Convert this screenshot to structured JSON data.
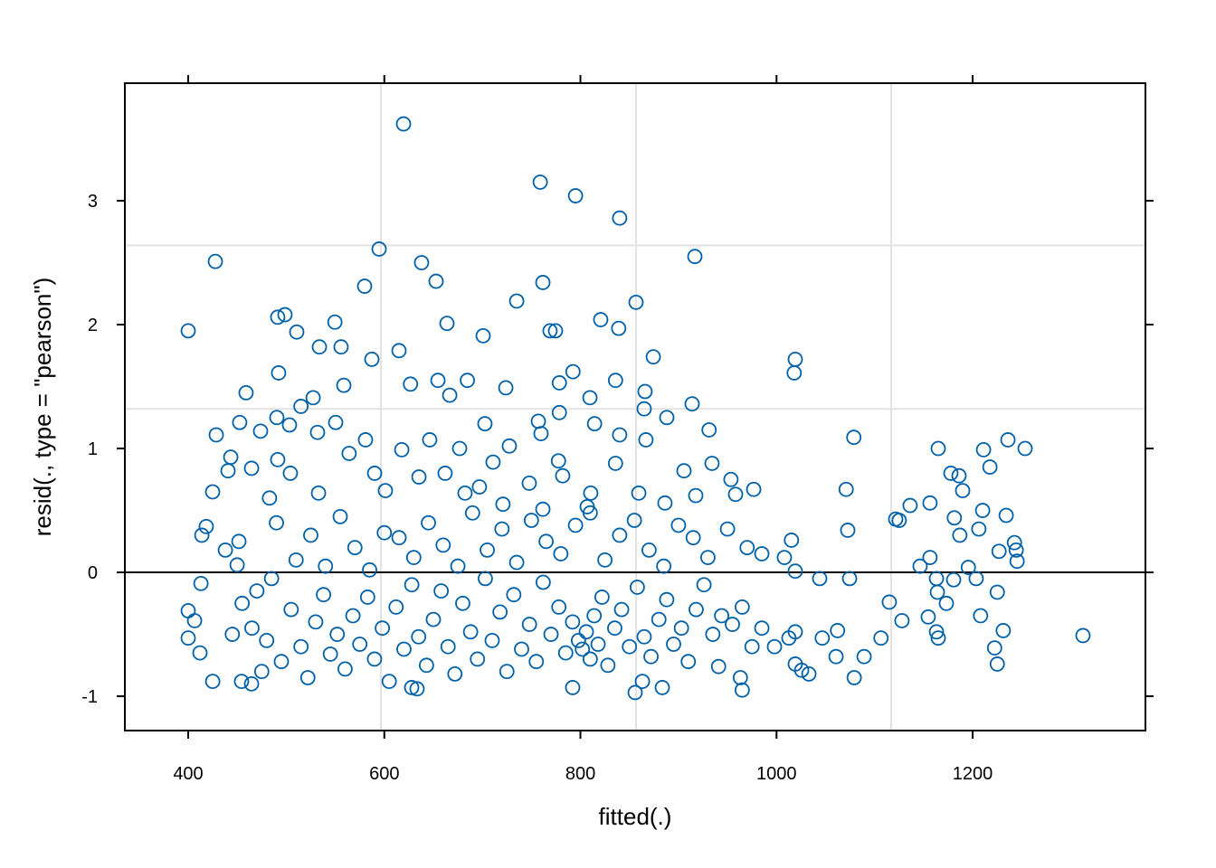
{
  "chart_data": {
    "type": "scatter",
    "x_label": "fitted(.)",
    "y_label": "resid(., type = \"pearson\")",
    "xlim": [
      335.4,
      1376.2
    ],
    "ylim": [
      -1.277,
      3.949
    ],
    "xticks": [
      400,
      600,
      800,
      1000,
      1200
    ],
    "yticks": [
      -1,
      0,
      1,
      2,
      3
    ],
    "grid_x": [
      596.5,
      856.7,
      1116.9
    ],
    "grid_y": [
      1.32,
      2.64
    ],
    "hline": 0,
    "color": "#0060a8",
    "x": [
      619.6,
      759,
      795,
      840,
      594.7,
      427.7,
      638,
      916.7,
      400,
      491.3,
      498.7,
      652.8,
      761.7,
      579.9,
      549.6,
      555.9,
      533.8,
      510.7,
      615,
      663.9,
      735,
      820.7,
      839,
      856.7,
      769,
      774.6,
      700.8,
      874.3,
      587.3,
      1019.1,
      1018,
      492.2,
      792.4,
      778.5,
      835.8,
      654.7,
      684.7,
      558.7,
      626.7,
      459,
      666.7,
      527.4,
      723.9,
      809.7,
      865.9,
      913.9,
      515,
      778.5,
      865,
      888.1,
      452.5,
      550.4,
      702.6,
      757.1,
      814.4,
      931.2,
      428.6,
      490.4,
      503.3,
      473.8,
      531.9,
      580.8,
      646.3,
      676.8,
      727.5,
      759.8,
      840,
      866.8,
      1078.8,
      1164.9,
      1236,
      1253.5,
      1211.1,
      443.4,
      491.3,
      564.1,
      617.8,
      710.9,
      777.6,
      835.8,
      905.6,
      934.2,
      953.5,
      1071,
      1217.6,
      1177.8,
      1186.1,
      440.6,
      464.6,
      504.2,
      590.1,
      635.3,
      662,
      697,
      747.8,
      781.9,
      810.5,
      859.5,
      917.6,
      976.7,
      424.9,
      482.9,
      532.9,
      601.1,
      682.3,
      721,
      761.7,
      806.9,
      886.2,
      958.2,
      1189.8,
      1136.2,
      1156.5,
      1210.2,
      1234.2,
      1072.6,
      1242.6,
      1244.4,
      1186.9,
      1206.3,
      1121.5,
      1125.1,
      1181.3,
      1015.2,
      1008,
      1156.5,
      1146.4,
      1195.6,
      1019.1,
      1245.3,
      1226.9,
      1044,
      1074.5,
      1163.1,
      1180.6,
      1203.6,
      1164,
      1225.1,
      1173.2,
      1115,
      1154.7,
      1127.9,
      1208.1,
      1231.2,
      1163.1,
      1164.9,
      1312.5,
      1106.5,
      1062.2,
      1046.6,
      1019.1,
      1012.6,
      997.9,
      1019.1,
      1025.6,
      1033,
      1060.7,
      1089.3,
      1079.2,
      1222.4,
      1225.1,
      965,
      963.1,
      940.9,
      855.8,
      863.2,
      883.5,
      792.1,
      633.4,
      627.9,
      400,
      400,
      406.5,
      412,
      425,
      454.4,
      464.6,
      413,
      418.4,
      413.9,
      437.9,
      451.7,
      449.9,
      480,
      495,
      505,
      515,
      522,
      530,
      538,
      545,
      552,
      560,
      568,
      575,
      583,
      590,
      598,
      605,
      612,
      620,
      628,
      635,
      643,
      650,
      658,
      665,
      672,
      680,
      688,
      695,
      703,
      710,
      718,
      725,
      732,
      740,
      748,
      755,
      762,
      770,
      778,
      785,
      792,
      798,
      802,
      806,
      810,
      814,
      818,
      822,
      828,
      835,
      842,
      850,
      858,
      865,
      872,
      880,
      888,
      895,
      903,
      910,
      918,
      926,
      935,
      944,
      955,
      965,
      975,
      985,
      490,
      510,
      525,
      540,
      555,
      570,
      585,
      600,
      615,
      630,
      645,
      660,
      675,
      690,
      705,
      720,
      735,
      750,
      765,
      780,
      795,
      810,
      825,
      840,
      855,
      870,
      885,
      900,
      915,
      930,
      950,
      970,
      985,
      470,
      465,
      475,
      485,
      455,
      445
    ],
    "values": [
      3.62,
      3.15,
      3.04,
      2.86,
      2.61,
      2.51,
      2.5,
      2.55,
      1.95,
      2.06,
      2.08,
      2.35,
      2.34,
      2.31,
      2.02,
      1.82,
      1.82,
      1.94,
      1.79,
      2.01,
      2.19,
      2.04,
      1.97,
      2.18,
      1.95,
      1.95,
      1.91,
      1.74,
      1.72,
      1.72,
      1.61,
      1.61,
      1.62,
      1.53,
      1.55,
      1.55,
      1.55,
      1.51,
      1.52,
      1.45,
      1.43,
      1.41,
      1.49,
      1.41,
      1.46,
      1.36,
      1.34,
      1.29,
      1.32,
      1.25,
      1.21,
      1.21,
      1.2,
      1.22,
      1.2,
      1.15,
      1.11,
      1.25,
      1.19,
      1.14,
      1.13,
      1.07,
      1.07,
      1.0,
      1.02,
      1.12,
      1.11,
      1.07,
      1.09,
      1.0,
      1.07,
      1.0,
      0.99,
      0.93,
      0.91,
      0.96,
      0.99,
      0.89,
      0.9,
      0.88,
      0.82,
      0.88,
      0.75,
      0.67,
      0.85,
      0.8,
      0.78,
      0.82,
      0.84,
      0.8,
      0.8,
      0.77,
      0.8,
      0.69,
      0.72,
      0.78,
      0.64,
      0.64,
      0.62,
      0.67,
      0.65,
      0.6,
      0.64,
      0.66,
      0.64,
      0.55,
      0.51,
      0.53,
      0.56,
      0.63,
      0.66,
      0.54,
      0.56,
      0.5,
      0.46,
      0.34,
      0.24,
      0.18,
      0.3,
      0.35,
      0.43,
      0.42,
      0.44,
      0.26,
      0.12,
      0.12,
      0.05,
      0.04,
      0.01,
      0.09,
      0.17,
      -0.05,
      -0.05,
      -0.05,
      -0.06,
      -0.05,
      -0.16,
      -0.16,
      -0.25,
      -0.24,
      -0.36,
      -0.39,
      -0.35,
      -0.47,
      -0.48,
      -0.53,
      -0.51,
      -0.53,
      -0.47,
      -0.53,
      -0.48,
      -0.53,
      -0.6,
      -0.74,
      -0.79,
      -0.82,
      -0.68,
      -0.68,
      -0.85,
      -0.61,
      -0.74,
      -0.95,
      -0.85,
      -0.76,
      -0.97,
      -0.88,
      -0.93,
      -0.93,
      -0.94,
      -0.93,
      -0.31,
      -0.53,
      -0.39,
      -0.65,
      -0.88,
      -0.88,
      -0.9,
      -0.09,
      0.37,
      0.3,
      0.18,
      0.25,
      0.06,
      -0.55,
      -0.72,
      -0.3,
      -0.6,
      -0.85,
      -0.4,
      -0.18,
      -0.66,
      -0.5,
      -0.78,
      -0.35,
      -0.58,
      -0.2,
      -0.7,
      -0.45,
      -0.88,
      -0.28,
      -0.62,
      -0.1,
      -0.52,
      -0.75,
      -0.38,
      -0.15,
      -0.6,
      -0.82,
      -0.25,
      -0.48,
      -0.7,
      -0.05,
      -0.55,
      -0.32,
      -0.8,
      -0.18,
      -0.62,
      -0.42,
      -0.72,
      -0.08,
      -0.5,
      -0.28,
      -0.65,
      -0.4,
      -0.55,
      -0.62,
      -0.48,
      -0.7,
      -0.35,
      -0.58,
      -0.2,
      -0.75,
      -0.45,
      -0.3,
      -0.6,
      -0.12,
      -0.52,
      -0.68,
      -0.38,
      -0.22,
      -0.58,
      -0.45,
      -0.72,
      -0.3,
      -0.1,
      -0.5,
      -0.35,
      -0.42,
      -0.28,
      -0.6,
      -0.45,
      0.4,
      0.1,
      0.3,
      0.05,
      0.45,
      0.2,
      0.02,
      0.32,
      0.28,
      0.12,
      0.4,
      0.22,
      0.05,
      0.48,
      0.18,
      0.35,
      0.08,
      0.42,
      0.25,
      0.15,
      0.38,
      0.48,
      0.1,
      0.3,
      0.42,
      0.18,
      0.05,
      0.38,
      0.28,
      0.12,
      0.35,
      0.2,
      0.15,
      -0.15,
      -0.45,
      -0.8,
      -0.05,
      -0.25,
      -0.5
    ]
  }
}
